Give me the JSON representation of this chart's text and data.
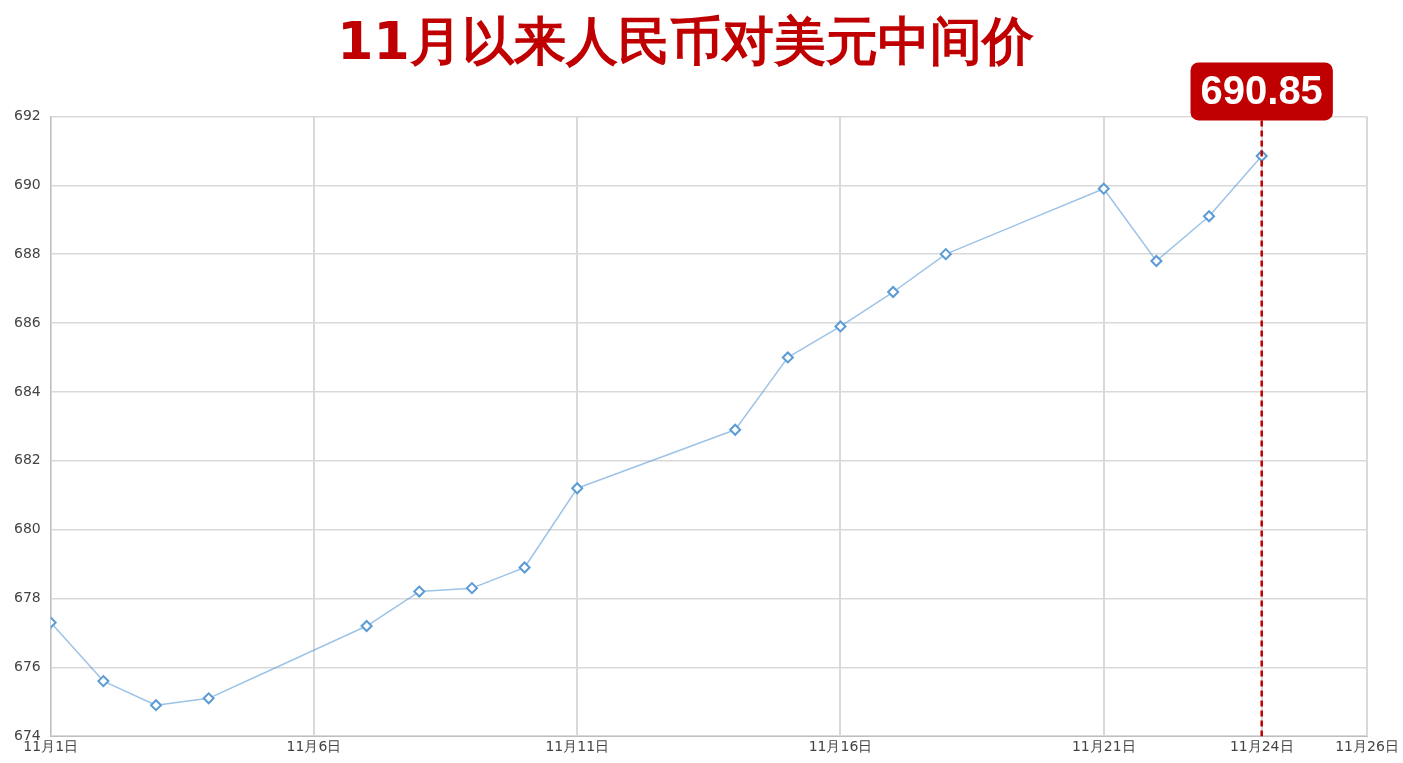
{
  "chart_data": {
    "type": "line",
    "title": "11月以来人民币对美元中间价",
    "x": [
      "--11-01",
      "--11-02",
      "--11-03",
      "--11-04",
      "--11-07",
      "--11-08",
      "--11-09",
      "--11-10",
      "--11-11",
      "--11-14",
      "--11-15",
      "--11-16",
      "--11-17",
      "--11-18",
      "--11-21",
      "--11-22",
      "--11-23",
      "--11-24"
    ],
    "series": [
      {
        "color": "#5b9bd5",
        "values": [
          677.3,
          675.6,
          674.9,
          675.1,
          677.2,
          678.2,
          678.3,
          678.9,
          681.2,
          682.9,
          685.0,
          685.9,
          686.9,
          688.0,
          689.9,
          687.8,
          689.1,
          690.85
        ]
      }
    ],
    "xlim": [
      "--11-01",
      "--11-26"
    ],
    "xticks": [
      {
        "value": "--11-01",
        "label": "11月1日"
      },
      {
        "value": "--11-06",
        "label": "11月6日"
      },
      {
        "value": "--11-11",
        "label": "11月11日"
      },
      {
        "value": "--11-16",
        "label": "11月16日"
      },
      {
        "value": "--11-21",
        "label": "11月21日"
      },
      {
        "value": "--11-24",
        "label": "11月24日"
      },
      {
        "value": "--11-26",
        "label": "11月26日"
      }
    ],
    "ylim": [
      674,
      692
    ],
    "yticks": [
      674,
      676,
      678,
      680,
      682,
      684,
      686,
      688,
      690,
      692
    ],
    "ref_lines": [
      {
        "axis": "x",
        "value": "--11-24",
        "label": "690.85",
        "color": "#c00000",
        "line_style": "dashed"
      }
    ],
    "grid": true,
    "legend": false,
    "marker": "diamond",
    "line_style": "solid"
  }
}
